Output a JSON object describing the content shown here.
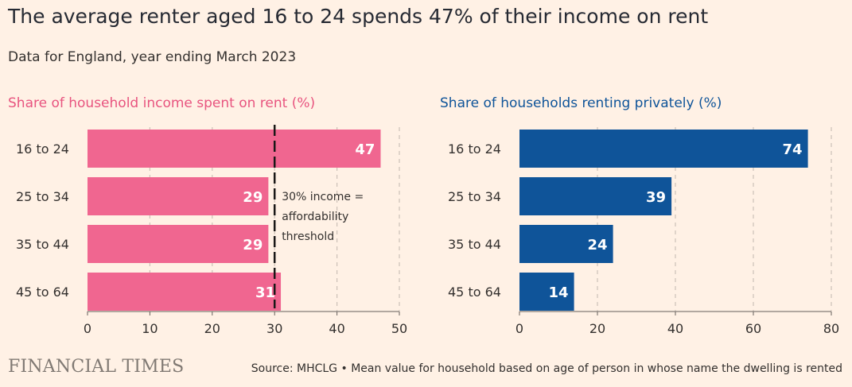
{
  "header": {
    "title": "The average renter aged 16 to 24 spends 47% of their income on rent",
    "subtitle": "Data for England, year ending March 2023"
  },
  "footer": {
    "logo": "FINANCIAL TIMES",
    "source": "Source: MHCLG • Mean value for household based on age of person in whose name the dwelling is rented"
  },
  "chart_data": [
    {
      "type": "bar",
      "orientation": "horizontal",
      "title": "Share of household income spent on rent (%)",
      "categories": [
        "16 to 24",
        "25 to 34",
        "35 to 44",
        "45 to 64"
      ],
      "values": [
        47,
        29,
        29,
        31
      ],
      "value_labels": [
        "47",
        "29",
        "29",
        "31"
      ],
      "xlim": [
        0,
        50
      ],
      "x_ticks": [
        0,
        10,
        20,
        30,
        40,
        50
      ],
      "x_tick_labels": [
        "0",
        "10",
        "20",
        "30",
        "40",
        "50"
      ],
      "grid": "vertical dashed",
      "color": "#f06690",
      "title_color": "#e8547f",
      "annotation": {
        "x": 30,
        "lines": [
          "30% income =",
          "affordability",
          "threshold"
        ]
      }
    },
    {
      "type": "bar",
      "orientation": "horizontal",
      "title": "Share of households renting privately (%)",
      "categories": [
        "16 to 24",
        "25 to 34",
        "35 to 44",
        "45 to 64"
      ],
      "values": [
        74,
        39,
        24,
        14
      ],
      "value_labels": [
        "74",
        "39",
        "24",
        "14"
      ],
      "xlim": [
        0,
        80
      ],
      "x_ticks": [
        0,
        20,
        40,
        60,
        80
      ],
      "x_tick_labels": [
        "0",
        "20",
        "40",
        "60",
        "80"
      ],
      "grid": "vertical dashed",
      "color": "#0f5499",
      "title_color": "#0f5499"
    }
  ]
}
